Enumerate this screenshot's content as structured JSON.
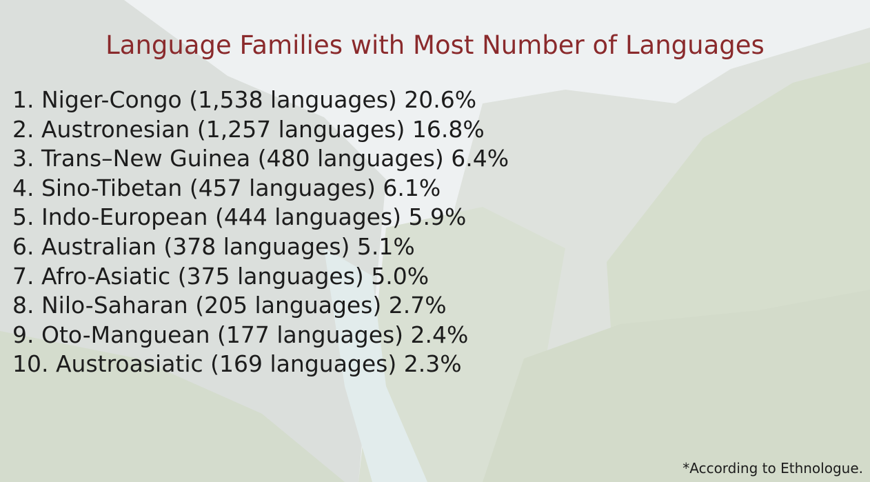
{
  "header": {
    "title": "Language Families with Most Number of Languages"
  },
  "list": {
    "items": [
      "1. Niger-Congo (1,538 languages) 20.6%",
      "2. Austronesian (1,257 languages) 16.8%",
      "3. Trans–New Guinea (480 languages) 6.4%",
      "4. Sino-Tibetan (457 languages) 6.1%",
      "5. Indo-European (444 languages) 5.9%",
      "6. Australian (378 languages) 5.1%",
      "7. Afro-Asiatic (375 languages) 5.0%",
      "8. Nilo-Saharan (205 languages) 2.7%",
      "9. Oto-Manguean (177 languages) 2.4%",
      "10. Austroasiatic (169 languages) 2.3%"
    ]
  },
  "footer": {
    "note": "*According to Ethnologue."
  }
}
